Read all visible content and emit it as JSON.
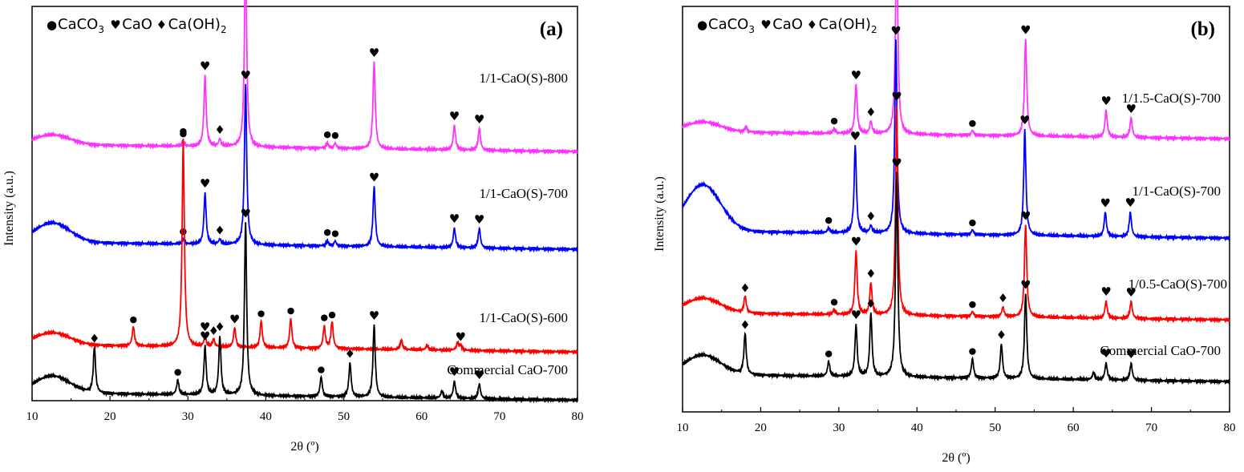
{
  "chart_data": [
    {
      "type": "line",
      "panel_label": "(a)",
      "xlabel": "2θ (º)",
      "ylabel": "Intensity (a.u.)",
      "xlim": [
        10,
        80
      ],
      "x_ticks": [
        10,
        20,
        30,
        40,
        50,
        60,
        70,
        80
      ],
      "legend": [
        {
          "symbol": "●",
          "label": "CaCO",
          "sub": "3"
        },
        {
          "symbol": "♥",
          "label": "CaO",
          "sub": ""
        },
        {
          "symbol": "♦",
          "label": "Ca(OH)",
          "sub": "2"
        }
      ],
      "legend_position": "top-left",
      "series": [
        {
          "name": "1/1-CaO(S)-800",
          "color": "#ff33ff",
          "baseline": 0.115,
          "hump": 0.04,
          "peaks": [
            {
              "x": 29.4,
              "h": 0.02,
              "mark": "●"
            },
            {
              "x": 32.2,
              "h": 0.29,
              "mark": "♥"
            },
            {
              "x": 34.1,
              "h": 0.03,
              "mark": "♦"
            },
            {
              "x": 37.4,
              "h": 0.81,
              "mark": "♥"
            },
            {
              "x": 47.9,
              "h": 0.02,
              "mark": "●"
            },
            {
              "x": 48.9,
              "h": 0.02,
              "mark": "●"
            },
            {
              "x": 53.9,
              "h": 0.36,
              "mark": "♥"
            },
            {
              "x": 64.2,
              "h": 0.1,
              "mark": "♥"
            },
            {
              "x": 67.4,
              "h": 0.09,
              "mark": "♥"
            }
          ]
        },
        {
          "name": "1/1-CaO(S)-700",
          "color": "#0000ff",
          "baseline": 0.115,
          "hump": 0.08,
          "peaks": [
            {
              "x": 29.4,
              "h": 0.02,
              "mark": "●"
            },
            {
              "x": 32.2,
              "h": 0.21,
              "mark": "♥"
            },
            {
              "x": 34.1,
              "h": 0.02,
              "mark": "♦"
            },
            {
              "x": 37.4,
              "h": 0.66,
              "mark": "♥"
            },
            {
              "x": 47.9,
              "h": 0.02,
              "mark": "●"
            },
            {
              "x": 48.9,
              "h": 0.02,
              "mark": "●"
            },
            {
              "x": 53.9,
              "h": 0.25,
              "mark": "♥"
            },
            {
              "x": 64.2,
              "h": 0.08,
              "mark": "♥"
            },
            {
              "x": 67.4,
              "h": 0.08,
              "mark": "♥"
            }
          ]
        },
        {
          "name": "1/1-CaO(S)-600",
          "color": "#ff0000",
          "baseline": 0.12,
          "hump": 0.05,
          "peaks": [
            {
              "x": 23.0,
              "h": 0.08,
              "mark": "●"
            },
            {
              "x": 29.4,
              "h": 0.85,
              "mark": "●"
            },
            {
              "x": 32.2,
              "h": 0.04,
              "mark": "♥"
            },
            {
              "x": 33.3,
              "h": 0.03,
              "mark": "♦"
            },
            {
              "x": 36.0,
              "h": 0.08,
              "mark": "♥"
            },
            {
              "x": 39.4,
              "h": 0.11,
              "mark": "●"
            },
            {
              "x": 43.2,
              "h": 0.12,
              "mark": "●"
            },
            {
              "x": 47.5,
              "h": 0.09,
              "mark": "●"
            },
            {
              "x": 48.5,
              "h": 0.11,
              "mark": "●"
            },
            {
              "x": 57.4,
              "h": 0.04,
              "mark": ""
            },
            {
              "x": 60.7,
              "h": 0.02,
              "mark": ""
            },
            {
              "x": 64.6,
              "h": 0.03,
              "mark": ""
            },
            {
              "x": 65.0,
              "h": 0.02,
              "mark": "♥"
            }
          ]
        },
        {
          "name": "Commercial CaO-700",
          "color": "#000000",
          "baseline": 0.08,
          "hump": 0.07,
          "peaks": [
            {
              "x": 18.0,
              "h": 0.19,
              "mark": "♦"
            },
            {
              "x": 28.7,
              "h": 0.06,
              "mark": "●"
            },
            {
              "x": 32.2,
              "h": 0.2,
              "mark": "♥"
            },
            {
              "x": 34.1,
              "h": 0.24,
              "mark": "♦"
            },
            {
              "x": 37.4,
              "h": 0.71,
              "mark": "♥"
            },
            {
              "x": 47.1,
              "h": 0.08,
              "mark": "●"
            },
            {
              "x": 50.8,
              "h": 0.14,
              "mark": "♦"
            },
            {
              "x": 53.9,
              "h": 0.3,
              "mark": "♥"
            },
            {
              "x": 62.6,
              "h": 0.03,
              "mark": ""
            },
            {
              "x": 64.2,
              "h": 0.07,
              "mark": "♥"
            },
            {
              "x": 67.4,
              "h": 0.06,
              "mark": "♥"
            }
          ]
        }
      ]
    },
    {
      "type": "line",
      "panel_label": "(b)",
      "xlabel": "2θ (º)",
      "ylabel": "Intensity (a.u.)",
      "xlim": [
        10,
        80
      ],
      "x_ticks": [
        10,
        20,
        30,
        40,
        50,
        60,
        70,
        80
      ],
      "legend": [
        {
          "symbol": "●",
          "label": "CaCO",
          "sub": "3"
        },
        {
          "symbol": "♥",
          "label": "CaO",
          "sub": ""
        },
        {
          "symbol": "♦",
          "label": "Ca(OH)",
          "sub": "2"
        }
      ],
      "legend_position": "top-left",
      "series": [
        {
          "name": "1/1.5-CaO(S)-700",
          "color": "#ff33ff",
          "baseline": 0.13,
          "hump": 0.04,
          "peaks": [
            {
              "x": 18.1,
              "h": 0.02,
              "mark": ""
            },
            {
              "x": 29.4,
              "h": 0.02,
              "mark": "●"
            },
            {
              "x": 32.2,
              "h": 0.2,
              "mark": "♥"
            },
            {
              "x": 34.1,
              "h": 0.05,
              "mark": "♦"
            },
            {
              "x": 37.4,
              "h": 0.86,
              "mark": "♥"
            },
            {
              "x": 47.1,
              "h": 0.02,
              "mark": "●"
            },
            {
              "x": 53.9,
              "h": 0.4,
              "mark": "♥"
            },
            {
              "x": 64.2,
              "h": 0.11,
              "mark": "♥"
            },
            {
              "x": 67.4,
              "h": 0.08,
              "mark": "♥"
            }
          ]
        },
        {
          "name": "1/1-CaO(S)-700",
          "color": "#0000ff",
          "baseline": 0.11,
          "hump": 0.19,
          "peaks": [
            {
              "x": 28.7,
              "h": 0.02,
              "mark": "●"
            },
            {
              "x": 32.1,
              "h": 0.36,
              "mark": "♥"
            },
            {
              "x": 34.1,
              "h": 0.03,
              "mark": "♦"
            },
            {
              "x": 37.3,
              "h": 0.79,
              "mark": "♥"
            },
            {
              "x": 47.1,
              "h": 0.02,
              "mark": "●"
            },
            {
              "x": 53.8,
              "h": 0.43,
              "mark": "♥"
            },
            {
              "x": 64.1,
              "h": 0.1,
              "mark": "♥"
            },
            {
              "x": 67.3,
              "h": 0.1,
              "mark": "♥"
            }
          ]
        },
        {
          "name": "1/0.5-CaO(S)-700",
          "color": "#ff0000",
          "baseline": 0.12,
          "hump": 0.06,
          "peaks": [
            {
              "x": 18.0,
              "h": 0.07,
              "mark": "♦"
            },
            {
              "x": 29.4,
              "h": 0.02,
              "mark": "●"
            },
            {
              "x": 32.2,
              "h": 0.26,
              "mark": "♥"
            },
            {
              "x": 34.1,
              "h": 0.13,
              "mark": "♦"
            },
            {
              "x": 37.4,
              "h": 0.86,
              "mark": "♥"
            },
            {
              "x": 47.1,
              "h": 0.02,
              "mark": "●"
            },
            {
              "x": 51.0,
              "h": 0.04,
              "mark": "♦"
            },
            {
              "x": 53.9,
              "h": 0.38,
              "mark": "♥"
            },
            {
              "x": 64.2,
              "h": 0.07,
              "mark": "♥"
            },
            {
              "x": 67.4,
              "h": 0.07,
              "mark": "♥"
            }
          ]
        },
        {
          "name": "Commercial CaO-700",
          "color": "#000000",
          "baseline": 0.07,
          "hump": 0.08,
          "peaks": [
            {
              "x": 18.0,
              "h": 0.17,
              "mark": "♦"
            },
            {
              "x": 28.7,
              "h": 0.06,
              "mark": "●"
            },
            {
              "x": 32.2,
              "h": 0.21,
              "mark": "♥"
            },
            {
              "x": 34.1,
              "h": 0.26,
              "mark": "♦"
            },
            {
              "x": 37.4,
              "h": 0.84,
              "mark": "♥"
            },
            {
              "x": 47.1,
              "h": 0.08,
              "mark": "●"
            },
            {
              "x": 50.8,
              "h": 0.14,
              "mark": "♦"
            },
            {
              "x": 53.9,
              "h": 0.35,
              "mark": "♥"
            },
            {
              "x": 62.6,
              "h": 0.03,
              "mark": ""
            },
            {
              "x": 64.2,
              "h": 0.07,
              "mark": "♥"
            },
            {
              "x": 67.4,
              "h": 0.07,
              "mark": "♥"
            }
          ]
        }
      ]
    }
  ]
}
